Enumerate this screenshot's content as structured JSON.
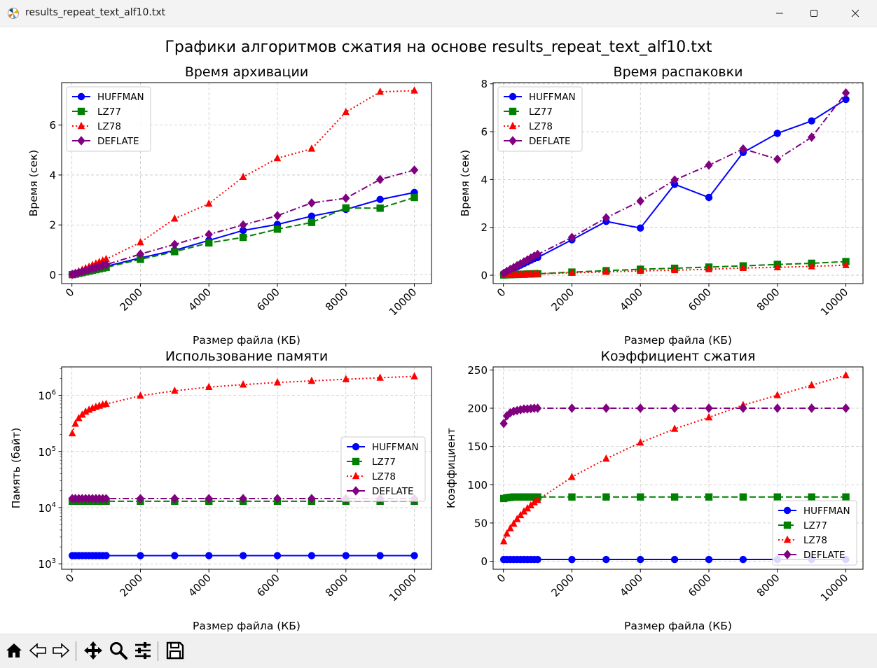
{
  "window": {
    "title": "results_repeat_text_alf10.txt"
  },
  "figure": {
    "suptitle": "Графики алгоритмов сжатия на основе results_repeat_text_alf10.txt"
  },
  "toolbar": {
    "icons": [
      "home-icon",
      "back-icon",
      "forward-icon",
      "pan-icon",
      "zoom-icon",
      "configure-subplots-icon",
      "save-icon"
    ]
  },
  "colors": {
    "HUFFMAN": "#0000ff",
    "LZ77": "#008000",
    "LZ78": "#ff0000",
    "DEFLATE": "#800080"
  },
  "chart_data": [
    {
      "type": "line",
      "title": "Время архивации",
      "xlabel": "Размер файла (КБ)",
      "ylabel": "Время (сек)",
      "xlim": [
        -300,
        10500
      ],
      "ylim": [
        -0.35,
        7.7
      ],
      "yscale": "linear",
      "xticks": [
        0,
        2000,
        4000,
        6000,
        8000,
        10000
      ],
      "yticks": [
        0,
        2,
        4,
        6
      ],
      "grid": true,
      "legend": "top-left",
      "x": [
        10,
        100,
        200,
        300,
        400,
        500,
        600,
        700,
        800,
        900,
        1000,
        2000,
        3000,
        4000,
        5000,
        6000,
        7000,
        8000,
        9000,
        10000
      ],
      "series": [
        {
          "name": "HUFFMAN",
          "marker": "circle",
          "dash": "solid",
          "values": [
            0.01,
            0.04,
            0.07,
            0.1,
            0.13,
            0.17,
            0.2,
            0.24,
            0.27,
            0.3,
            0.34,
            0.68,
            0.98,
            1.38,
            1.78,
            2.02,
            2.35,
            2.62,
            3.02,
            3.3
          ]
        },
        {
          "name": "LZ77",
          "marker": "square",
          "dash": "dashed",
          "values": [
            0.01,
            0.03,
            0.06,
            0.09,
            0.12,
            0.15,
            0.18,
            0.21,
            0.24,
            0.27,
            0.3,
            0.62,
            0.93,
            1.28,
            1.5,
            1.83,
            2.1,
            2.68,
            2.67,
            3.1
          ]
        },
        {
          "name": "LZ78",
          "marker": "triangle",
          "dash": "dotted",
          "values": [
            0.02,
            0.08,
            0.14,
            0.2,
            0.26,
            0.32,
            0.39,
            0.45,
            0.51,
            0.57,
            0.63,
            1.3,
            2.25,
            2.85,
            3.92,
            4.67,
            5.05,
            6.52,
            7.33,
            7.38
          ]
        },
        {
          "name": "DEFLATE",
          "marker": "diamond",
          "dash": "dashdot",
          "values": [
            0.02,
            0.05,
            0.09,
            0.13,
            0.17,
            0.21,
            0.25,
            0.29,
            0.33,
            0.37,
            0.41,
            0.83,
            1.22,
            1.62,
            2.0,
            2.37,
            2.88,
            3.07,
            3.82,
            4.2
          ]
        }
      ]
    },
    {
      "type": "line",
      "title": "Время распаковки",
      "xlabel": "Размер файла (КБ)",
      "ylabel": "Время (сек)",
      "xlim": [
        -300,
        10500
      ],
      "ylim": [
        -0.35,
        8.05
      ],
      "yscale": "linear",
      "xticks": [
        0,
        2000,
        4000,
        6000,
        8000,
        10000
      ],
      "yticks": [
        0,
        2,
        4,
        6,
        8
      ],
      "grid": true,
      "legend": "top-left",
      "x": [
        10,
        100,
        200,
        300,
        400,
        500,
        600,
        700,
        800,
        900,
        1000,
        2000,
        3000,
        4000,
        5000,
        6000,
        7000,
        8000,
        9000,
        10000
      ],
      "series": [
        {
          "name": "HUFFMAN",
          "marker": "circle",
          "dash": "solid",
          "values": [
            0.07,
            0.14,
            0.21,
            0.28,
            0.35,
            0.42,
            0.49,
            0.56,
            0.63,
            0.7,
            0.74,
            1.48,
            2.25,
            1.97,
            3.8,
            3.25,
            5.13,
            5.93,
            6.45,
            7.35
          ]
        },
        {
          "name": "LZ77",
          "marker": "square",
          "dash": "dashed",
          "values": [
            0.01,
            0.02,
            0.02,
            0.03,
            0.03,
            0.04,
            0.04,
            0.05,
            0.05,
            0.06,
            0.06,
            0.13,
            0.19,
            0.25,
            0.29,
            0.34,
            0.39,
            0.45,
            0.5,
            0.57
          ]
        },
        {
          "name": "LZ78",
          "marker": "triangle",
          "dash": "dotted",
          "values": [
            0.01,
            0.01,
            0.02,
            0.02,
            0.03,
            0.03,
            0.04,
            0.04,
            0.05,
            0.05,
            0.06,
            0.1,
            0.14,
            0.18,
            0.21,
            0.25,
            0.3,
            0.33,
            0.37,
            0.42
          ]
        },
        {
          "name": "DEFLATE",
          "marker": "diamond",
          "dash": "dashdot",
          "values": [
            0.08,
            0.16,
            0.24,
            0.32,
            0.4,
            0.48,
            0.56,
            0.64,
            0.72,
            0.8,
            0.87,
            1.58,
            2.4,
            3.1,
            3.98,
            4.6,
            5.28,
            4.85,
            5.77,
            7.62
          ]
        }
      ]
    },
    {
      "type": "line",
      "title": "Использование памяти",
      "xlabel": "Размер файла (КБ)",
      "ylabel": "Память (байт)",
      "xlim": [
        -300,
        10500
      ],
      "ylim": [
        800,
        3200000
      ],
      "yscale": "log",
      "xticks": [
        0,
        2000,
        4000,
        6000,
        8000,
        10000
      ],
      "yticks": [
        1000,
        10000,
        100000,
        1000000
      ],
      "ytick_labels": [
        {
          "base": "10",
          "exp": "3"
        },
        {
          "base": "10",
          "exp": "4"
        },
        {
          "base": "10",
          "exp": "5"
        },
        {
          "base": "10",
          "exp": "6"
        }
      ],
      "grid": true,
      "legend": "center-right",
      "x": [
        10,
        100,
        200,
        300,
        400,
        500,
        600,
        700,
        800,
        900,
        1000,
        2000,
        3000,
        4000,
        5000,
        6000,
        7000,
        8000,
        9000,
        10000
      ],
      "series": [
        {
          "name": "HUFFMAN",
          "marker": "circle",
          "dash": "solid",
          "values": [
            1400,
            1400,
            1400,
            1400,
            1400,
            1400,
            1400,
            1400,
            1400,
            1400,
            1400,
            1400,
            1400,
            1400,
            1400,
            1400,
            1400,
            1400,
            1400,
            1400
          ]
        },
        {
          "name": "LZ77",
          "marker": "square",
          "dash": "dashed",
          "values": [
            13000,
            13000,
            13000,
            13000,
            13000,
            13000,
            13000,
            13000,
            13000,
            13000,
            13000,
            13000,
            13000,
            13000,
            13000,
            13000,
            13000,
            13000,
            13000,
            13000
          ]
        },
        {
          "name": "LZ78",
          "marker": "triangle",
          "dash": "dotted",
          "values": [
            210000,
            310000,
            390000,
            450000,
            510000,
            550000,
            590000,
            620000,
            650000,
            680000,
            700000,
            980000,
            1200000,
            1400000,
            1550000,
            1690000,
            1800000,
            1930000,
            2050000,
            2170000
          ]
        },
        {
          "name": "DEFLATE",
          "marker": "diamond",
          "dash": "dashdot",
          "values": [
            14500,
            14500,
            14500,
            14500,
            14500,
            14500,
            14500,
            14500,
            14500,
            14500,
            14500,
            14500,
            14500,
            14500,
            14500,
            14500,
            14500,
            14500,
            14500,
            14500
          ]
        }
      ]
    },
    {
      "type": "line",
      "title": "Коэффициент сжатия",
      "xlabel": "Размер файла (КБ)",
      "ylabel": "Коэффициент",
      "xlim": [
        -300,
        10500
      ],
      "ylim": [
        -10.5,
        254
      ],
      "yscale": "linear",
      "xticks": [
        0,
        2000,
        4000,
        6000,
        8000,
        10000
      ],
      "yticks": [
        0,
        50,
        100,
        150,
        200,
        250
      ],
      "grid": true,
      "legend": "bottom-right",
      "x": [
        10,
        100,
        200,
        300,
        400,
        500,
        600,
        700,
        800,
        900,
        1000,
        2000,
        3000,
        4000,
        5000,
        6000,
        7000,
        8000,
        9000,
        10000
      ],
      "series": [
        {
          "name": "HUFFMAN",
          "marker": "circle",
          "dash": "solid",
          "values": [
            2.3,
            2.3,
            2.3,
            2.3,
            2.3,
            2.3,
            2.3,
            2.3,
            2.3,
            2.3,
            2.3,
            2.3,
            2.3,
            2.3,
            2.3,
            2.3,
            2.3,
            2.3,
            2.3,
            2.3
          ]
        },
        {
          "name": "LZ77",
          "marker": "square",
          "dash": "dashed",
          "values": [
            82,
            83,
            83.5,
            84,
            84,
            84,
            84,
            84,
            84,
            84,
            84,
            84,
            84,
            84,
            84,
            84,
            84,
            84,
            84,
            84
          ]
        },
        {
          "name": "LZ78",
          "marker": "triangle",
          "dash": "dotted",
          "values": [
            26,
            36,
            43,
            49,
            55,
            60,
            65,
            69,
            73,
            77,
            80,
            110,
            134,
            155,
            173,
            188,
            204,
            217,
            230,
            243
          ]
        },
        {
          "name": "DEFLATE",
          "marker": "diamond",
          "dash": "dashdot",
          "values": [
            180,
            190,
            194,
            196,
            197,
            198,
            199,
            199,
            199.5,
            200,
            200,
            200,
            200,
            200,
            200,
            200,
            200,
            200,
            200,
            200
          ]
        }
      ]
    }
  ]
}
